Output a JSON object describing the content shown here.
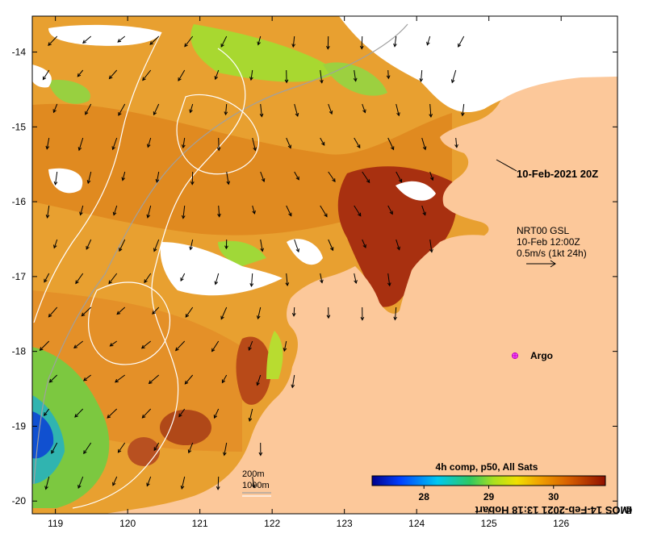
{
  "map": {
    "lat_ticks": [
      "-14",
      "-15",
      "-16",
      "-17",
      "-18",
      "-19",
      "-20"
    ],
    "lon_ticks": [
      "119",
      "120",
      "121",
      "122",
      "123",
      "124",
      "125",
      "126"
    ],
    "lon_range": [
      118.68,
      126.78
    ],
    "lat_range": [
      -20.17,
      -13.52
    ],
    "land_color": "#fcc89a",
    "no_data_color": "#ffffff"
  },
  "annotations": {
    "pass_label": "10-Feb-2021 20Z",
    "current_product": "NRT00 GSL",
    "current_time": "10-Feb 12:00Z",
    "current_scale": "0.5m/s (1kt 24h)",
    "argo_label": "Argo",
    "depth_200": "200m",
    "depth_1000": "1000m"
  },
  "colorbar": {
    "title": "4h comp, p50, All Sats",
    "ticks": [
      "28",
      "29",
      "30"
    ],
    "tick_values": [
      28,
      29,
      30
    ],
    "range": [
      27.2,
      30.8
    ]
  },
  "credit": "IMOS 14-Feb-2021 13:18 Hobart",
  "credit_icon": "copyright-icon"
}
